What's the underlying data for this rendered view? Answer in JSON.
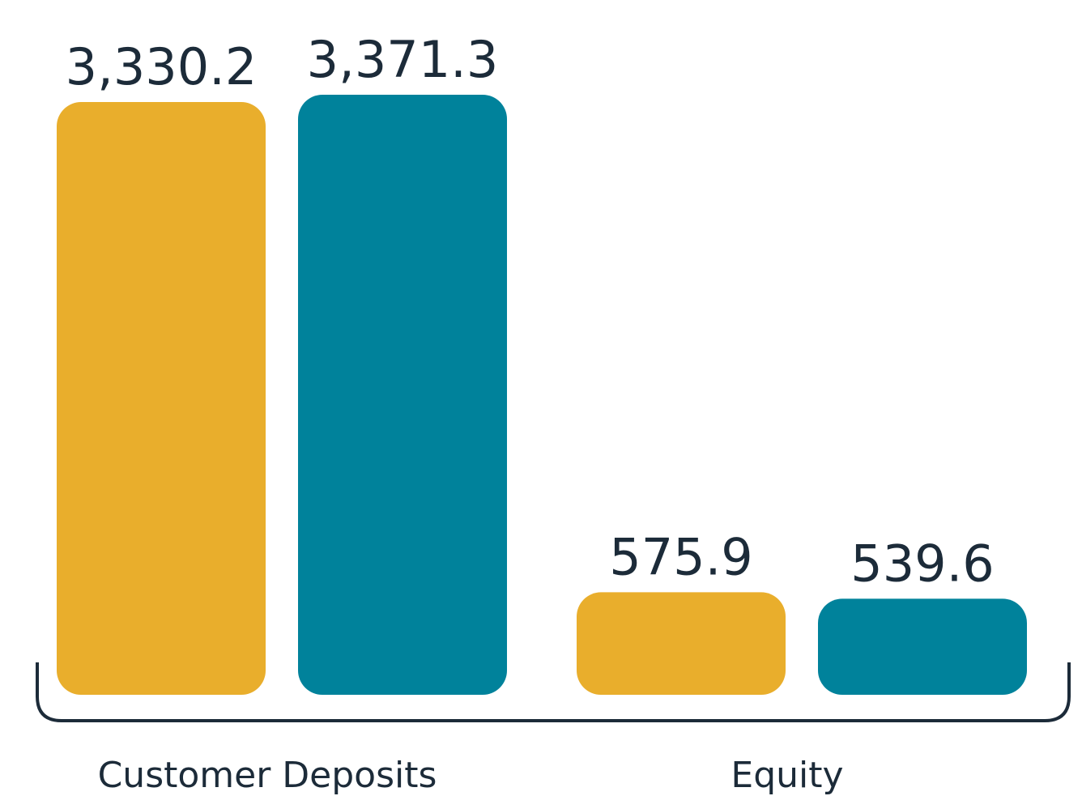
{
  "chart_data": {
    "type": "bar",
    "categories": [
      "Customer Deposits",
      "Equity"
    ],
    "series": [
      {
        "color": "#e9ae2c",
        "values": [
          3330.2,
          575.9
        ],
        "value_labels": [
          "3,330.2",
          "575.9"
        ]
      },
      {
        "color": "#00829b",
        "values": [
          3371.3,
          539.6
        ],
        "value_labels": [
          "3,371.3",
          "539.6"
        ]
      }
    ]
  }
}
